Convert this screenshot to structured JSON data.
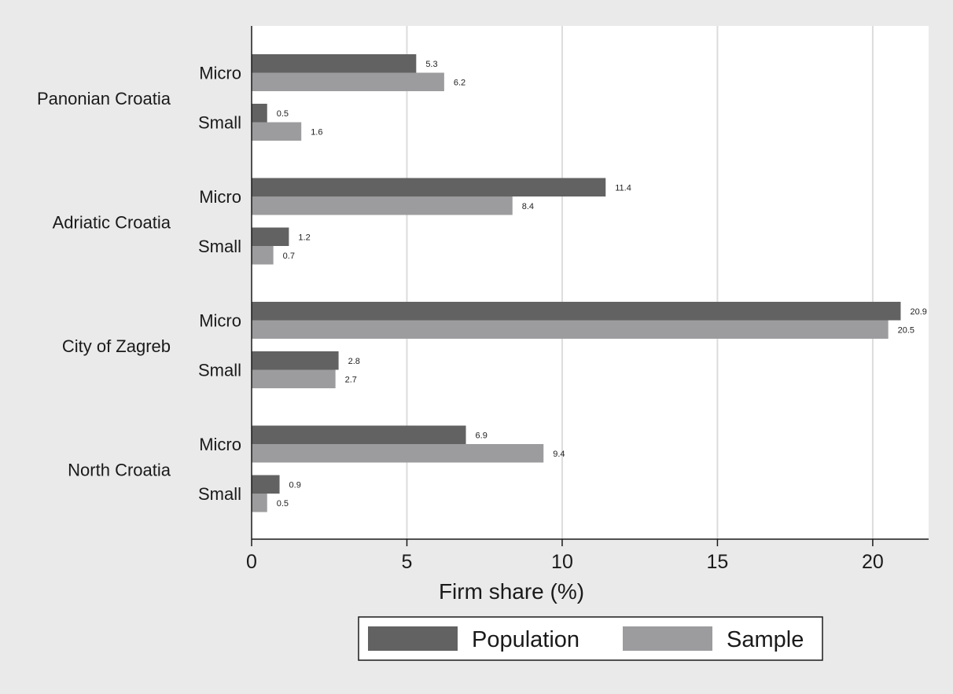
{
  "chart_data": {
    "type": "bar",
    "orientation": "horizontal",
    "groups": [
      {
        "name": "Panonian Croatia",
        "subgroups": [
          {
            "name": "Micro",
            "values": [
              5.3,
              6.2
            ]
          },
          {
            "name": "Small",
            "values": [
              0.5,
              1.6
            ]
          }
        ]
      },
      {
        "name": "Adriatic Croatia",
        "subgroups": [
          {
            "name": "Micro",
            "values": [
              11.4,
              8.4
            ]
          },
          {
            "name": "Small",
            "values": [
              1.2,
              0.7
            ]
          }
        ]
      },
      {
        "name": "City of Zagreb",
        "subgroups": [
          {
            "name": "Micro",
            "values": [
              20.9,
              20.5
            ]
          },
          {
            "name": "Small",
            "values": [
              2.8,
              2.7
            ]
          }
        ]
      },
      {
        "name": "North Croatia",
        "subgroups": [
          {
            "name": "Micro",
            "values": [
              6.9,
              9.4
            ]
          },
          {
            "name": "Small",
            "values": [
              0.9,
              0.5
            ]
          }
        ]
      }
    ],
    "series": [
      {
        "name": "Population",
        "color": "#626263"
      },
      {
        "name": "Sample",
        "color": "#9c9c9e"
      }
    ],
    "xlabel": "Firm share (%)",
    "xlim": [
      0,
      21.8
    ],
    "xticks": [
      0,
      5,
      10,
      15,
      20
    ],
    "grid": true,
    "legend_position": "bottom"
  },
  "colors": {
    "background": "#eaeaea",
    "plot_background": "#ffffff",
    "grid": "#dcdcdc",
    "axis": "#1a1a1a"
  }
}
